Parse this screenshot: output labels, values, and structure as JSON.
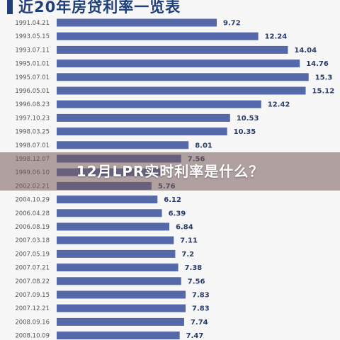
{
  "overlay": {
    "title": "12月LPR实时利率是什么？"
  },
  "colors": {
    "bar": "#5568a9",
    "title": "#1f3f7a"
  },
  "chart_data": {
    "type": "bar",
    "orientation": "horizontal",
    "title": "近20年房贷利率一览表",
    "xlim": [
      0,
      16
    ],
    "categories": [
      "1991.04.21",
      "1993.05.15",
      "1993.07.11",
      "1995.01.01",
      "1995.07.01",
      "1996.05.01",
      "1996.08.23",
      "1997.10.23",
      "1998.03.25",
      "1998.07.01",
      "1998.12.07",
      "1999.06.10",
      "2002.02.21",
      "2004.10.29",
      "2006.04.28",
      "2006.08.19",
      "2007.03.18",
      "2007.05.19",
      "2007.07.21",
      "2007.08.22",
      "2007.09.15",
      "2007.12.21",
      "2008.09.16",
      "2008.10.09"
    ],
    "values": [
      9.72,
      12.24,
      14.04,
      14.76,
      15.3,
      15.12,
      12.42,
      10.53,
      10.35,
      8.01,
      7.56,
      6.39,
      5.76,
      6.12,
      6.39,
      6.84,
      7.11,
      7.2,
      7.38,
      7.56,
      7.83,
      7.83,
      7.74,
      7.47
    ],
    "labels": [
      "9.72",
      "12.24",
      "14.04",
      "14.76",
      "15.3",
      "15.12",
      "12.42",
      "10.53",
      "10.35",
      "8.01",
      "7.56",
      "",
      "5.76",
      "6.12",
      "6.39",
      "6.84",
      "7.11",
      "7.2",
      "7.38",
      "7.56",
      "7.83",
      "7.83",
      "7.74",
      "7.47"
    ]
  }
}
